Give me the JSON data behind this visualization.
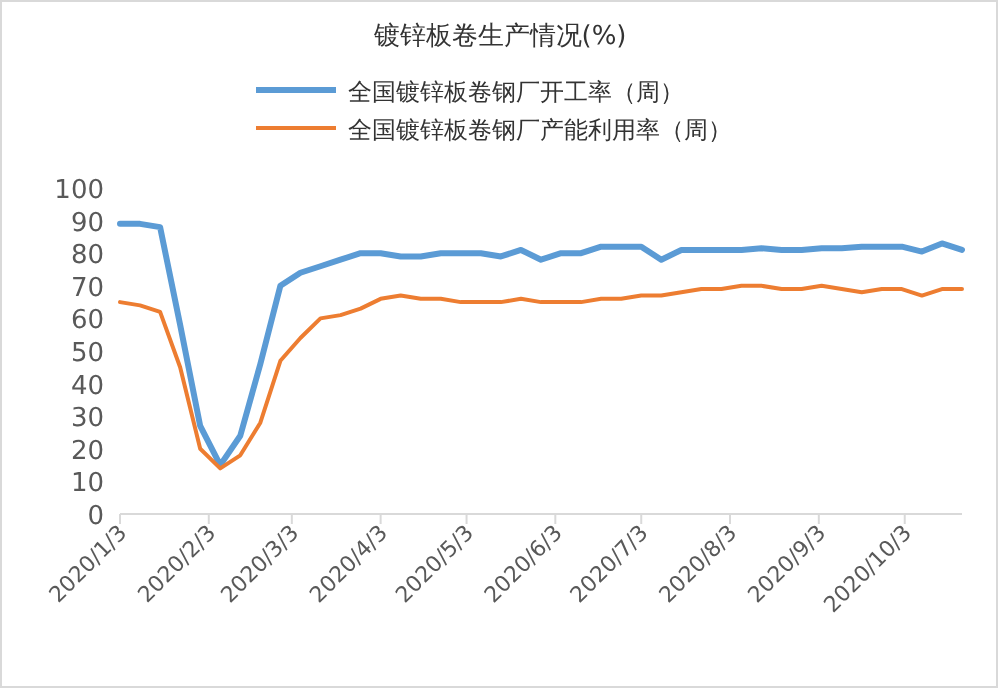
{
  "chart_data": {
    "type": "line",
    "title": "镀锌板卷生产情况(%)",
    "x": [
      "2020-01-03",
      "2020-01-10",
      "2020-01-17",
      "2020-01-24",
      "2020-01-31",
      "2020-02-07",
      "2020-02-14",
      "2020-02-21",
      "2020-02-28",
      "2020-03-06",
      "2020-03-13",
      "2020-03-20",
      "2020-03-27",
      "2020-04-03",
      "2020-04-10",
      "2020-04-17",
      "2020-04-24",
      "2020-05-01",
      "2020-05-08",
      "2020-05-15",
      "2020-05-22",
      "2020-05-29",
      "2020-06-05",
      "2020-06-12",
      "2020-06-19",
      "2020-06-26",
      "2020-07-03",
      "2020-07-10",
      "2020-07-17",
      "2020-07-24",
      "2020-07-31",
      "2020-08-07",
      "2020-08-14",
      "2020-08-21",
      "2020-08-28",
      "2020-09-04",
      "2020-09-11",
      "2020-09-18",
      "2020-09-25",
      "2020-10-02",
      "2020-10-09",
      "2020-10-16",
      "2020-10-23"
    ],
    "series": [
      {
        "name": "全国镀锌板卷钢厂开工率（周）",
        "color": "#5b9bd5",
        "values": [
          89,
          89,
          88,
          58,
          27,
          15,
          24,
          46,
          70,
          74,
          76,
          78,
          80,
          80,
          79,
          79,
          80,
          80,
          80,
          79,
          81,
          78,
          80,
          80,
          82,
          82,
          82,
          78,
          81,
          81,
          81,
          81,
          81.5,
          81,
          81,
          81.5,
          81.5,
          82,
          82,
          82,
          80.5,
          83,
          81
        ]
      },
      {
        "name": "全国镀锌板卷钢厂产能利用率（周）",
        "color": "#ed7d31",
        "values": [
          65,
          64,
          62,
          45,
          20,
          14,
          18,
          28,
          47,
          54,
          60,
          61,
          63,
          66,
          67,
          66,
          66,
          65,
          65,
          65,
          66,
          65,
          65,
          65,
          66,
          66,
          67,
          67,
          68,
          69,
          69,
          70,
          70,
          69,
          69,
          70,
          69,
          68,
          69,
          69,
          67,
          69,
          69
        ]
      }
    ],
    "xlim": [
      "2020-01-03",
      "2020-10-23"
    ],
    "xticks": [
      {
        "value": "2020-01-03",
        "label": "2020/1/3"
      },
      {
        "value": "2020-02-03",
        "label": "2020/2/3"
      },
      {
        "value": "2020-03-03",
        "label": "2020/3/3"
      },
      {
        "value": "2020-04-03",
        "label": "2020/4/3"
      },
      {
        "value": "2020-05-03",
        "label": "2020/5/3"
      },
      {
        "value": "2020-06-03",
        "label": "2020/6/3"
      },
      {
        "value": "2020-07-03",
        "label": "2020/7/3"
      },
      {
        "value": "2020-08-03",
        "label": "2020/8/3"
      },
      {
        "value": "2020-09-03",
        "label": "2020/9/3"
      },
      {
        "value": "2020-10-03",
        "label": "2020/10/3"
      }
    ],
    "ylim": [
      0,
      100
    ],
    "yticks": [
      0,
      10,
      20,
      30,
      40,
      50,
      60,
      70,
      80,
      90,
      100
    ],
    "legend": "top"
  }
}
